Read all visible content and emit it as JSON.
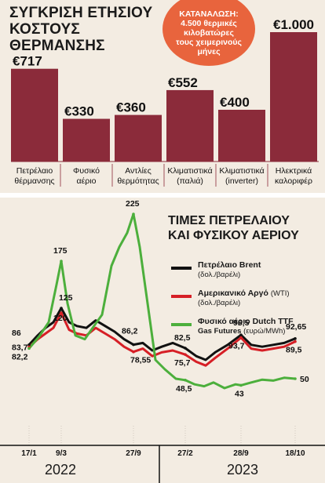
{
  "heating": {
    "title_line1": "ΣΥΓΚΡΙΣΗ ΕΤΗΣΙΟΥ",
    "title_line2": "ΚΟΣΤΟΥΣ ΘΕΡΜΑΝΣΗΣ",
    "badge": [
      "ΚΑΤΑΝΑΛΩΣΗ:",
      "4.500 θερμικές",
      "κιλοβατώρες",
      "τους χειμερινούς",
      "μήνες"
    ]
  },
  "prices": {
    "title_line1": "ΤΙΜΕΣ ΠΕΤΡΕΛΑΙΟΥ",
    "title_line2": "ΚΑΙ ΦΥΣΙΚΟΥ ΑΕΡΙΟΥ",
    "legend": [
      {
        "name": "Πετρέλαιο Brent",
        "unit": "(δολ./βαρέλι)",
        "color": "#111111"
      },
      {
        "name": "Αμερικανικό Αργό",
        "name_suffix": "(WTI)",
        "unit": "(δολ./βαρέλι)",
        "color": "#d61f26"
      },
      {
        "name": "Φυσικό αέριο Dutch TTF",
        "unit_inline": "Gas Futures",
        "unit": "(ευρώ/MWh)",
        "color": "#4caf3c"
      }
    ],
    "years": [
      "2022",
      "2023"
    ]
  },
  "chart_data": [
    {
      "type": "bar",
      "title": "ΣΥΓΚΡΙΣΗ ΕΤΗΣΙΟΥ ΚΟΣΤΟΥΣ ΘΕΡΜΑΝΣΗΣ",
      "categories": [
        [
          "Πετρέλαιο",
          "θέρμανσης"
        ],
        [
          "Φυσικό",
          "αέριο"
        ],
        [
          "Αντλίες",
          "θερμότητας"
        ],
        [
          "Κλιματιστικά",
          "(παλιά)"
        ],
        [
          "Κλιματιστικά",
          "(inverter)"
        ],
        [
          "Ηλεκτρικά",
          "καλοριφέρ"
        ]
      ],
      "values": [
        717,
        330,
        360,
        552,
        400,
        1000
      ],
      "labels": [
        "€717",
        "€330",
        "€360",
        "€552",
        "€400",
        "€1.000"
      ],
      "bar_color": "#8b2b3a",
      "ylim": [
        0,
        1000
      ]
    },
    {
      "type": "line",
      "title": "ΤΙΜΕΣ ΠΕΤΡΕΛΑΙΟΥ ΚΑΙ ΦΥΣΙΚΟΥ ΑΕΡΙΟΥ",
      "x_ticks": [
        "17/1",
        "9/3",
        "27/9",
        "27/2",
        "28/9",
        "18/10"
      ],
      "ylim": [
        0,
        240
      ],
      "series": [
        {
          "name": "Πετρέλαιο Brent",
          "color": "#111111",
          "x": [
            "17/1",
            "9/3",
            "27/9",
            "27/2",
            "28/9",
            "18/10"
          ],
          "values": [
            86,
            125,
            86.2,
            82.5,
            96.5,
            92.65
          ],
          "labels": [
            "86",
            "125",
            "86,2",
            "82,5",
            "96,5",
            "92,65"
          ]
        },
        {
          "name": "Αμερικανικό Αργό (WTI)",
          "color": "#d61f26",
          "x": [
            "17/1",
            "9/3",
            "27/9",
            "27/2",
            "28/9",
            "18/10"
          ],
          "values": [
            83.7,
            120,
            78.55,
            75.7,
            93.7,
            89.5
          ],
          "labels": [
            "83,7",
            "120",
            "78,55",
            "75,7",
            "93,7",
            "89,5"
          ]
        },
        {
          "name": "Φυσικό αέριο Dutch TTF Gas Futures",
          "color": "#4caf3c",
          "x": [
            "17/1",
            "9/3",
            "27/9",
            "27/2",
            "28/9",
            "18/10"
          ],
          "values": [
            82.2,
            175,
            225,
            48.5,
            43,
            50
          ],
          "labels": [
            "82,2",
            "175",
            "225",
            "48,5",
            "43",
            "50"
          ]
        }
      ]
    }
  ]
}
